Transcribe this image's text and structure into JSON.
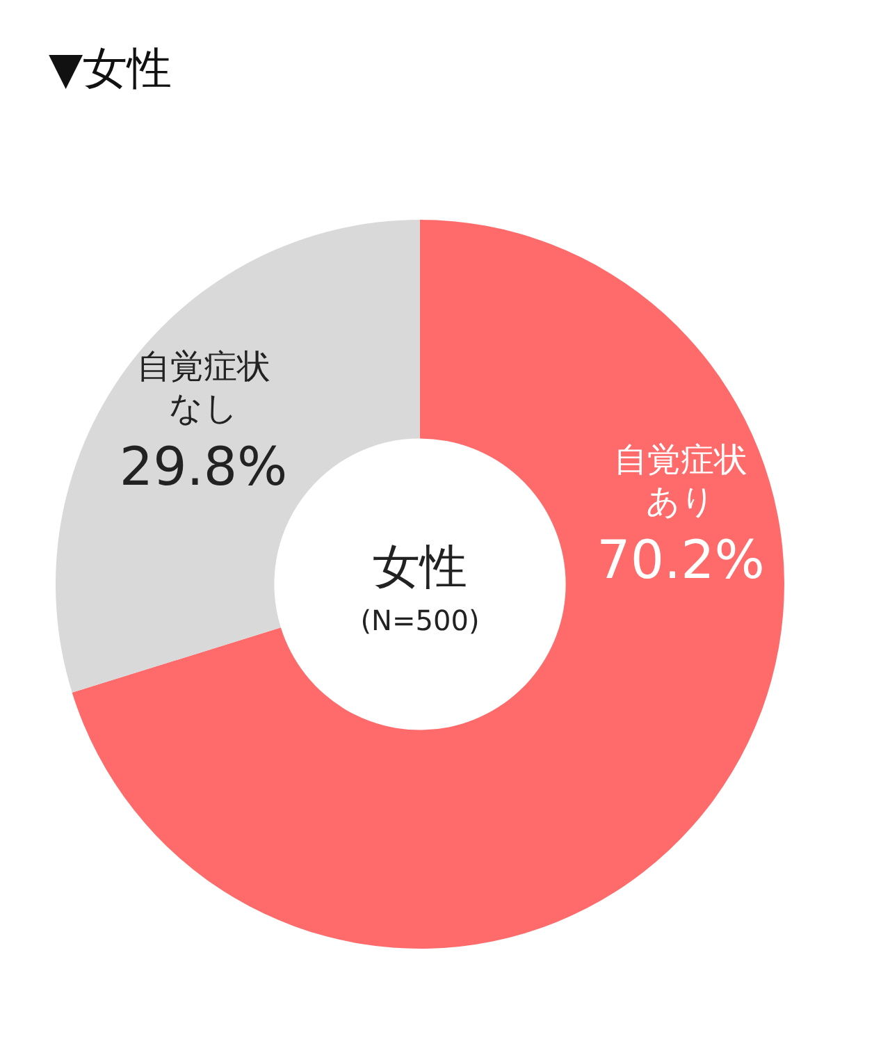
{
  "chart_data": {
    "type": "donut",
    "title": "▼女性",
    "categories": [
      "自覚症状あり",
      "自覚症状なし"
    ],
    "values": [
      70.2,
      29.8
    ],
    "colors": [
      "#ff6b6b",
      "#d9d9d9"
    ],
    "value_labels": [
      "70.2%",
      "29.8%"
    ],
    "annotations": [
      "女性",
      "(N=500)"
    ],
    "legend": false
  }
}
